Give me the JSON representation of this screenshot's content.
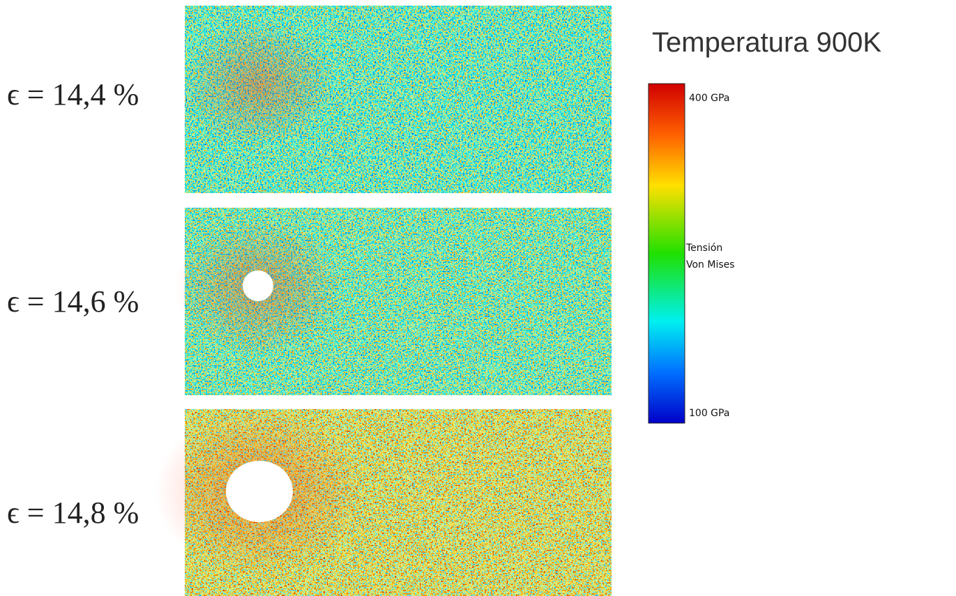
{
  "title": "Temperatura 900K",
  "panels": [
    {
      "label": "ϵ = 14,4 %"
    },
    {
      "label": "ϵ = 14,6 %"
    },
    {
      "label": "ϵ = 14,8 %"
    }
  ],
  "colorbar": {
    "max_label": "400 GPa",
    "quantity": [
      "Tensión",
      "Von Mises"
    ],
    "min_label": "100 GPa"
  }
}
